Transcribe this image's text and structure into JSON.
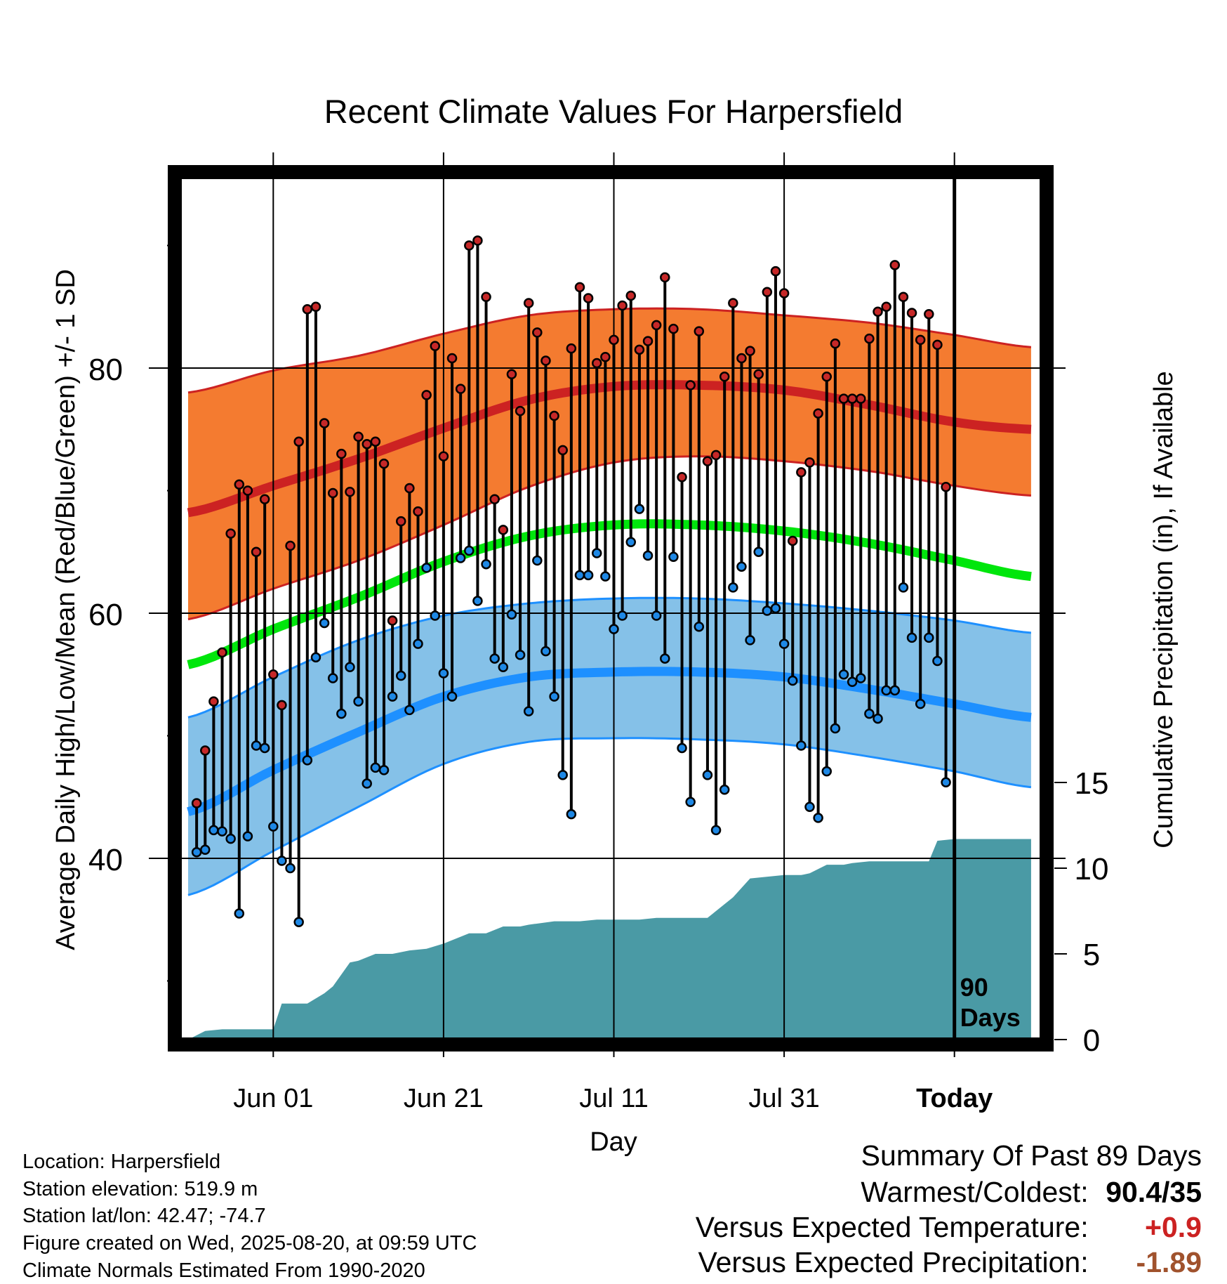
{
  "chart_data": {
    "type": "line",
    "title": "Recent Climate Values For Harpersfield",
    "xlabel": "Day",
    "ylabel": "Average Daily High/Low/Mean (Red/Blue/Green) +/- 1 SD",
    "y2label": "Cumulative Precipitation (in), If Available",
    "x_ticks": [
      "Jun 01",
      "Jun 21",
      "Jul 11",
      "Jul 31",
      "Today"
    ],
    "y_ticks": [
      "40",
      "60",
      "80"
    ],
    "y2_ticks": [
      "0",
      "5",
      "10",
      "15"
    ],
    "ylim": [
      25,
      95
    ],
    "y2lim": [
      0,
      35
    ],
    "xlim_days_before_today": [
      -90,
      9
    ],
    "today_marker_label": [
      "90",
      "Days"
    ],
    "grid": true,
    "normals": {
      "days_before_today": [
        -90,
        -80,
        -70,
        -60,
        -50,
        -40,
        -30,
        -20,
        -10,
        0,
        9
      ],
      "high_mean": [
        68.2,
        70.4,
        72.6,
        75.1,
        77.4,
        78.5,
        78.6,
        78.2,
        77.0,
        75.6,
        75.0
      ],
      "high_upper": [
        78.0,
        79.8,
        81.0,
        82.8,
        84.3,
        84.8,
        84.8,
        84.3,
        83.7,
        82.7,
        81.7
      ],
      "high_lower": [
        59.5,
        62.0,
        64.3,
        67.2,
        70.3,
        72.3,
        72.8,
        72.4,
        71.6,
        70.4,
        69.6
      ],
      "mean": [
        55.8,
        58.7,
        61.3,
        64.2,
        66.3,
        67.2,
        67.2,
        66.7,
        65.7,
        64.3,
        63.0
      ],
      "low_mean": [
        43.8,
        47.2,
        50.3,
        53.2,
        54.8,
        55.2,
        55.2,
        54.8,
        53.8,
        52.6,
        51.5
      ],
      "low_upper": [
        51.5,
        54.8,
        57.8,
        59.8,
        60.8,
        61.2,
        61.2,
        60.8,
        60.2,
        59.4,
        58.4
      ],
      "low_lower": [
        37.0,
        40.6,
        44.2,
        47.7,
        49.5,
        49.8,
        49.7,
        49.3,
        48.3,
        47.1,
        45.8
      ]
    },
    "series": [
      {
        "name": "High",
        "values": [
          44.5,
          48.8,
          52.8,
          56.8,
          66.5,
          70.5,
          70.0,
          65.0,
          69.3,
          55.0,
          52.5,
          65.5,
          74.0,
          84.8,
          85.0,
          75.5,
          69.8,
          73.0,
          69.9,
          74.4,
          73.8,
          74.0,
          72.2,
          59.4,
          67.5,
          70.2,
          68.3,
          77.8,
          81.8,
          72.8,
          80.8,
          78.3,
          90.0,
          90.4,
          85.8,
          69.3,
          66.8,
          79.5,
          76.5,
          85.3,
          82.9,
          80.6,
          76.1,
          73.3,
          81.6,
          86.6,
          85.7,
          80.4,
          80.9,
          82.3,
          85.1,
          85.9,
          81.5,
          82.2,
          83.5,
          87.4,
          83.2,
          71.1,
          78.6,
          83.0,
          72.4,
          72.9,
          79.3,
          85.3,
          80.8,
          81.4,
          79.5,
          86.2,
          87.9,
          86.1,
          65.9,
          71.5,
          72.3,
          76.3,
          79.3,
          82.0,
          77.5,
          77.5,
          77.5,
          82.4,
          84.6,
          85.0,
          88.4,
          85.8,
          84.5,
          82.3,
          84.4,
          81.9,
          70.3
        ]
      },
      {
        "name": "Low",
        "values": [
          40.5,
          40.7,
          42.3,
          42.2,
          41.6,
          35.5,
          41.8,
          49.2,
          49.0,
          42.6,
          39.8,
          39.2,
          34.8,
          48.0,
          56.4,
          59.2,
          54.7,
          51.8,
          55.6,
          52.8,
          46.1,
          47.4,
          47.2,
          53.2,
          54.9,
          52.1,
          57.5,
          63.7,
          59.8,
          55.1,
          53.2,
          64.5,
          65.1,
          61.0,
          64.0,
          56.3,
          55.6,
          59.9,
          56.6,
          52.0,
          64.3,
          56.9,
          53.2,
          46.8,
          43.6,
          63.1,
          63.1,
          64.9,
          63.0,
          58.7,
          59.8,
          65.8,
          68.5,
          64.7,
          59.8,
          56.3,
          64.6,
          49.0,
          44.6,
          58.9,
          46.8,
          42.3,
          45.6,
          62.1,
          63.8,
          57.8,
          65.0,
          60.2,
          60.4,
          57.5,
          54.5,
          49.2,
          44.2,
          43.3,
          47.1,
          50.6,
          55.0,
          54.4,
          54.7,
          51.8,
          51.4,
          53.7,
          53.7,
          62.1,
          58.0,
          52.6,
          58.0,
          56.1,
          46.2
        ]
      }
    ],
    "precipitation": {
      "days_before_today": [
        -90,
        -88,
        -86,
        -84,
        -82,
        -80,
        -79,
        -78,
        -76,
        -74,
        -73,
        -71,
        -70,
        -68,
        -66,
        -64,
        -62,
        -60,
        -58,
        -57,
        -55,
        -53,
        -51,
        -50,
        -47,
        -44,
        -42,
        -41,
        -39,
        -37,
        -35,
        -32,
        -29,
        -26,
        -24,
        -20,
        -18,
        -17,
        -15,
        -13,
        -12,
        -10,
        -8,
        -7,
        -6,
        -5,
        -4,
        -3,
        -2,
        0,
        9
      ],
      "cumulative_in": [
        0.0,
        0.5,
        0.6,
        0.6,
        0.6,
        0.6,
        2.1,
        2.1,
        2.1,
        2.7,
        3.1,
        4.5,
        4.6,
        5.0,
        5.0,
        5.2,
        5.3,
        5.6,
        6.0,
        6.2,
        6.2,
        6.6,
        6.6,
        6.7,
        6.9,
        6.9,
        7.0,
        7.0,
        7.0,
        7.0,
        7.1,
        7.1,
        7.1,
        8.3,
        9.4,
        9.6,
        9.6,
        9.7,
        10.2,
        10.2,
        10.3,
        10.4,
        10.4,
        10.4,
        10.4,
        10.4,
        10.4,
        10.4,
        11.6,
        11.7,
        11.7
      ]
    }
  },
  "colors": {
    "high": "#cc2222",
    "high_band": "#f47b30",
    "mean": "#00e60c",
    "low": "#1e90ff",
    "low_band": "#85c1e8",
    "precip": "#4a9aa5",
    "dot_high": "#c62828",
    "dot_low": "#1e88e5",
    "positive": "#cc2222",
    "negative": "#a0522d"
  },
  "info": {
    "location": "Location: Harpersfield",
    "elevation": "Station elevation: 519.9 m",
    "latlon": "Station lat/lon: 42.47; -74.7",
    "created": "Figure created on Wed, 2025-08-20, at 09:59 UTC",
    "normals": "Climate Normals Estimated From 1990-2020"
  },
  "summary": {
    "heading": "Summary Of Past 89 Days",
    "warmest_label": "Warmest/Coldest:",
    "warmest_value": "90.4/35",
    "temp_label": "Versus Expected Temperature:",
    "temp_value": "+0.9",
    "precip_label": "Versus Expected Precipitation:",
    "precip_value": "-1.89"
  }
}
